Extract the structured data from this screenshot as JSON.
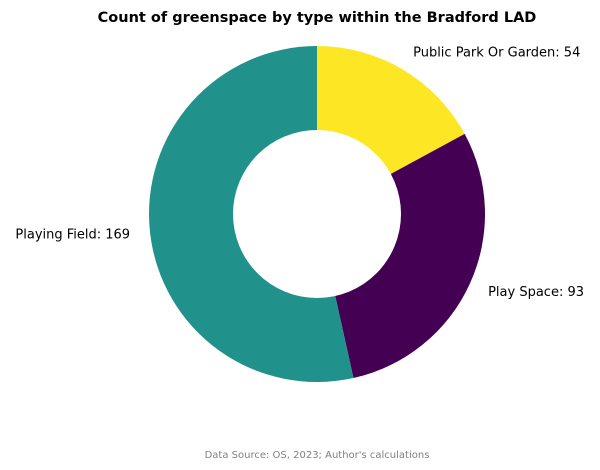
{
  "chart_data": {
    "type": "pie",
    "style": "donut",
    "title": "Count of greenspace by type within the Bradford LAD",
    "slices": [
      {
        "label": "Public Park Or Garden",
        "value": 54,
        "display": "Public Park Or Garden: 54",
        "color": "#fde725"
      },
      {
        "label": "Play Space",
        "value": 93,
        "display": "Play Space: 93",
        "color": "#440154"
      },
      {
        "label": "Playing Field",
        "value": 169,
        "display": "Playing Field: 169",
        "color": "#21918c"
      }
    ],
    "start_angle_deg": 90,
    "direction": "clockwise"
  },
  "footer": {
    "source": "Data Source: OS, 2023; Author's calculations"
  }
}
